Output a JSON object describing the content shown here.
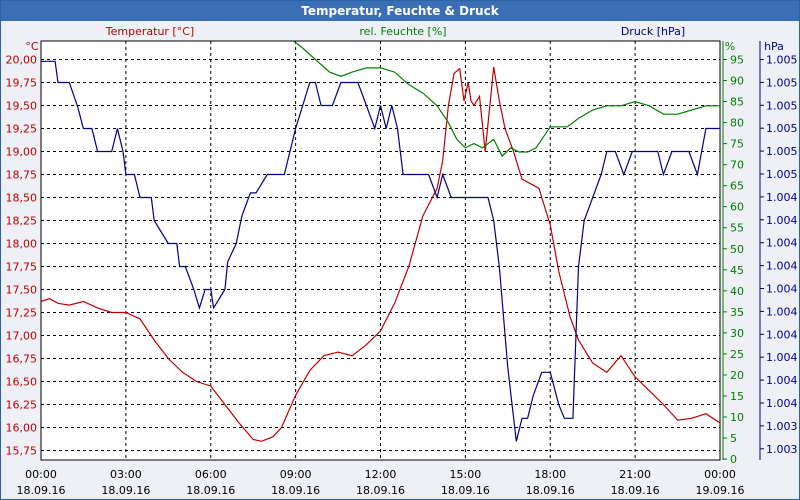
{
  "window": {
    "title": "Temperatur, Feuchte & Druck"
  },
  "chart_data": {
    "type": "line",
    "title": "Temperatur, Feuchte & Druck",
    "grid": true,
    "x_ticks": [
      {
        "time": "00:00",
        "date": "18.09.16"
      },
      {
        "time": "03:00",
        "date": "18.09.16"
      },
      {
        "time": "06:00",
        "date": "18.09.16"
      },
      {
        "time": "09:00",
        "date": "18.09.16"
      },
      {
        "time": "12:00",
        "date": "18.09.16"
      },
      {
        "time": "15:00",
        "date": "18.09.16"
      },
      {
        "time": "18:00",
        "date": "18.09.16"
      },
      {
        "time": "21:00",
        "date": "18.09.16"
      },
      {
        "time": "00:00",
        "date": "19.09.16"
      }
    ],
    "xlim_hours": [
      0,
      24
    ],
    "axes": {
      "temperature": {
        "label": "Temperatur [°C]",
        "unit": "°C",
        "color": "#c00000",
        "ylim": [
          15.75,
          20.0
        ],
        "ticks": [
          "20,00",
          "19,75",
          "19,50",
          "19,25",
          "19,00",
          "18,75",
          "18,50",
          "18,25",
          "18,00",
          "17,75",
          "17,50",
          "17,25",
          "17,00",
          "16,75",
          "16,50",
          "16,25",
          "16,00",
          "15,75"
        ]
      },
      "humidity": {
        "label": "rel. Feuchte [%]",
        "unit": "%",
        "color": "#008000",
        "ylim": [
          0,
          100
        ],
        "ticks": [
          "95",
          "90",
          "85",
          "80",
          "75",
          "70",
          "65",
          "60",
          "55",
          "50",
          "45",
          "40",
          "35",
          "30",
          "25",
          "20",
          "15",
          "10",
          "5",
          "0"
        ]
      },
      "pressure": {
        "label": "Druck [hPa]",
        "unit": "hPa",
        "color": "#00008b",
        "ticks": [
          "1.005",
          "1.005",
          "1.005",
          "1.005",
          "1.005",
          "1.005",
          "1.004",
          "1.004",
          "1.004",
          "1.004",
          "1.004",
          "1.004",
          "1.004",
          "1.004",
          "1.004",
          "1.004",
          "1.003",
          "1.003"
        ]
      }
    },
    "series": [
      {
        "name": "Temperatur [°C]",
        "axis": "temperature",
        "color": "#c00000",
        "x_hours": [
          0,
          0.3,
          0.6,
          1.0,
          1.5,
          2.0,
          2.5,
          3.0,
          3.5,
          4.0,
          4.5,
          5.0,
          5.5,
          6.0,
          6.5,
          7.0,
          7.5,
          7.8,
          8.2,
          8.5,
          9.0,
          9.5,
          10.0,
          10.5,
          11.0,
          11.5,
          12.0,
          12.5,
          13.0,
          13.5,
          14.0,
          14.2,
          14.4,
          14.6,
          14.8,
          14.95,
          15.1,
          15.2,
          15.3,
          15.5,
          15.7,
          15.9,
          16.0,
          16.2,
          16.4,
          16.7,
          17.0,
          17.3,
          17.6,
          18.0,
          18.3,
          18.7,
          19.0,
          19.5,
          20.0,
          20.5,
          21.0,
          21.5,
          22.0,
          22.5,
          23.0,
          23.5,
          24.0
        ],
        "values": [
          17.37,
          17.4,
          17.35,
          17.33,
          17.37,
          17.3,
          17.25,
          17.25,
          17.18,
          16.95,
          16.75,
          16.6,
          16.5,
          16.45,
          16.25,
          16.05,
          15.87,
          15.85,
          15.9,
          16.0,
          16.35,
          16.62,
          16.78,
          16.82,
          16.78,
          16.9,
          17.05,
          17.35,
          17.75,
          18.3,
          18.6,
          18.9,
          19.5,
          19.85,
          19.9,
          19.55,
          19.75,
          19.55,
          19.5,
          19.6,
          19.0,
          19.6,
          19.92,
          19.55,
          19.25,
          19.0,
          18.7,
          18.65,
          18.6,
          18.2,
          17.7,
          17.2,
          16.95,
          16.7,
          16.6,
          16.78,
          16.55,
          16.4,
          16.25,
          16.08,
          16.1,
          16.15,
          16.05
        ]
      },
      {
        "name": "rel. Feuchte [%]",
        "axis": "humidity",
        "color": "#008000",
        "x_hours": [
          8.8,
          9.2,
          9.7,
          10.2,
          10.6,
          11.0,
          11.5,
          12.0,
          12.5,
          13.0,
          13.5,
          14.0,
          14.4,
          14.7,
          15.0,
          15.3,
          15.6,
          16.0,
          16.3,
          16.6,
          16.9,
          17.2,
          17.5,
          17.8,
          18.0,
          18.3,
          18.6,
          19.0,
          19.5,
          20.0,
          20.5,
          21.0,
          21.5,
          22.0,
          22.5,
          23.0,
          23.5,
          24.0
        ],
        "values": [
          100,
          98,
          95,
          92,
          91,
          92,
          93,
          93,
          92,
          89,
          87,
          84,
          80,
          76,
          74,
          75,
          74,
          76,
          72,
          74,
          73,
          73,
          74,
          77,
          79,
          79,
          79,
          81,
          83,
          84,
          84,
          85,
          84,
          82,
          82,
          83,
          84,
          84
        ]
      },
      {
        "name": "Druck [hPa]",
        "axis": "temperature",
        "color": "#00008b",
        "x_hours": [
          0,
          0.5,
          0.6,
          1.0,
          1.3,
          1.5,
          1.8,
          2.0,
          2.5,
          2.7,
          2.9,
          3.0,
          3.3,
          3.5,
          3.9,
          4.0,
          4.5,
          4.8,
          4.9,
          5.1,
          5.4,
          5.6,
          5.8,
          6.0,
          6.1,
          6.5,
          6.6,
          6.9,
          7.1,
          7.4,
          7.6,
          8.0,
          8.3,
          8.6,
          9.0,
          9.5,
          9.7,
          9.9,
          10.0,
          10.3,
          10.6,
          11.0,
          11.2,
          11.5,
          11.8,
          12.0,
          12.2,
          12.4,
          12.6,
          12.8,
          13.1,
          13.4,
          13.7,
          14.0,
          14.2,
          14.5,
          14.7,
          14.9,
          15.1,
          15.3,
          15.6,
          15.8,
          16.0,
          16.2,
          16.5,
          16.8,
          17.0,
          17.2,
          17.4,
          17.7,
          18.0,
          18.3,
          18.5,
          18.8,
          19.0,
          19.2,
          19.5,
          19.8,
          20.0,
          20.3,
          20.6,
          20.9,
          21.2,
          21.5,
          21.8,
          22.0,
          22.3,
          22.6,
          22.9,
          23.2,
          23.5,
          23.7,
          24.0
        ],
        "values": [
          19.98,
          19.98,
          19.75,
          19.75,
          19.48,
          19.25,
          19.25,
          19.0,
          19.0,
          19.25,
          19.0,
          18.75,
          18.75,
          18.5,
          18.5,
          18.25,
          18.0,
          18.0,
          17.75,
          17.75,
          17.5,
          17.3,
          17.5,
          17.5,
          17.3,
          17.5,
          17.8,
          18.0,
          18.3,
          18.55,
          18.55,
          18.75,
          18.75,
          18.75,
          19.25,
          19.75,
          19.75,
          19.5,
          19.5,
          19.5,
          19.75,
          19.75,
          19.75,
          19.5,
          19.25,
          19.5,
          19.25,
          19.5,
          19.25,
          18.75,
          18.75,
          18.75,
          18.75,
          18.5,
          18.75,
          18.5,
          18.5,
          18.5,
          18.5,
          18.5,
          18.5,
          18.5,
          18.25,
          17.75,
          16.65,
          15.85,
          16.1,
          16.1,
          16.35,
          16.6,
          16.6,
          16.25,
          16.1,
          16.1,
          17.75,
          18.25,
          18.5,
          18.75,
          19.0,
          19.0,
          18.75,
          19.0,
          19.0,
          19.0,
          19.0,
          18.75,
          19.0,
          19.0,
          19.0,
          18.75,
          19.25,
          19.25,
          19.25
        ]
      }
    ]
  }
}
